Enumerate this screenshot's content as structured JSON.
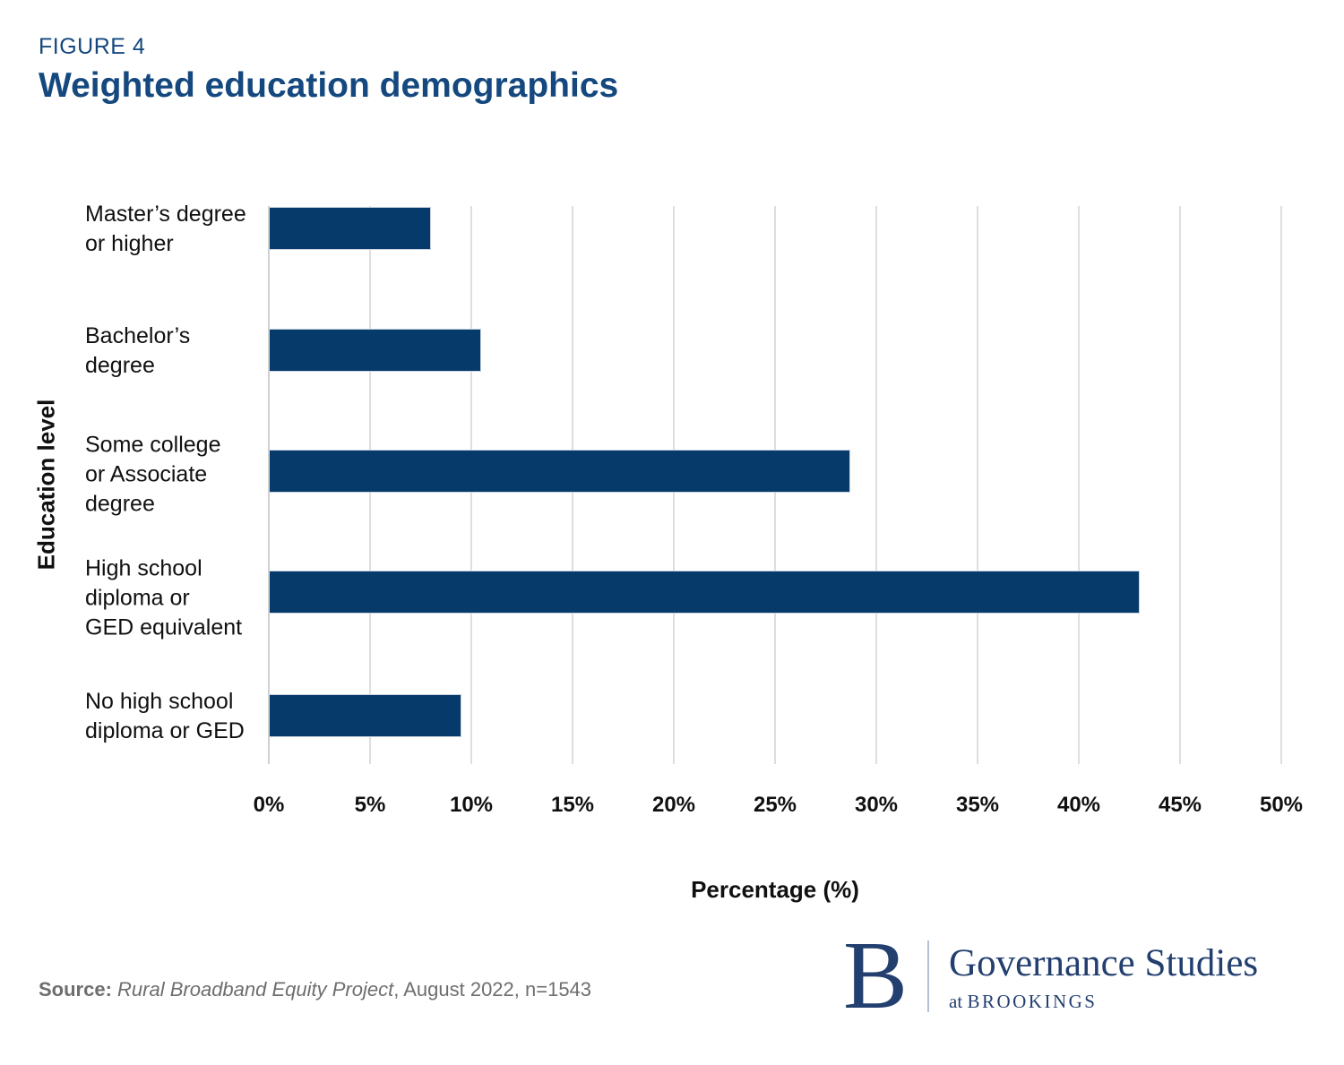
{
  "figure_label": "FIGURE 4",
  "title": "Weighted education demographics",
  "chart_data": {
    "type": "bar",
    "orientation": "horizontal",
    "title": "Weighted education demographics",
    "categories": [
      "Master’s degree\nor higher",
      "Bachelor’s\ndegree",
      "Some college\nor Associate\ndegree",
      "High school\ndiploma or\nGED equivalent",
      "No high school\ndiploma or GED"
    ],
    "values": [
      8,
      10.5,
      28.7,
      43,
      9.5
    ],
    "xlabel": "Percentage (%)",
    "ylabel": "Education level",
    "xlim": [
      0,
      50
    ],
    "xticks": [
      "0%",
      "5%",
      "10%",
      "15%",
      "20%",
      "25%",
      "30%",
      "35%",
      "40%",
      "45%",
      "50%"
    ],
    "grid": true,
    "legend": false,
    "bar_color": "#053A6B"
  },
  "source": {
    "prefix": "Source:",
    "italic": " Rural Broadband Equity Project",
    "rest": ", August 2022, n=1543"
  },
  "logo": {
    "initial": "B",
    "name": "Governance Studies",
    "sub_at": "at",
    "sub_brookings": "BROOKINGS"
  },
  "colors": {
    "title_navy": "#14487E",
    "bar_navy": "#053A6B",
    "logo_navy": "#223F6F",
    "gridline": "#DEDEDE",
    "source_gray": "#6E6E6E"
  }
}
